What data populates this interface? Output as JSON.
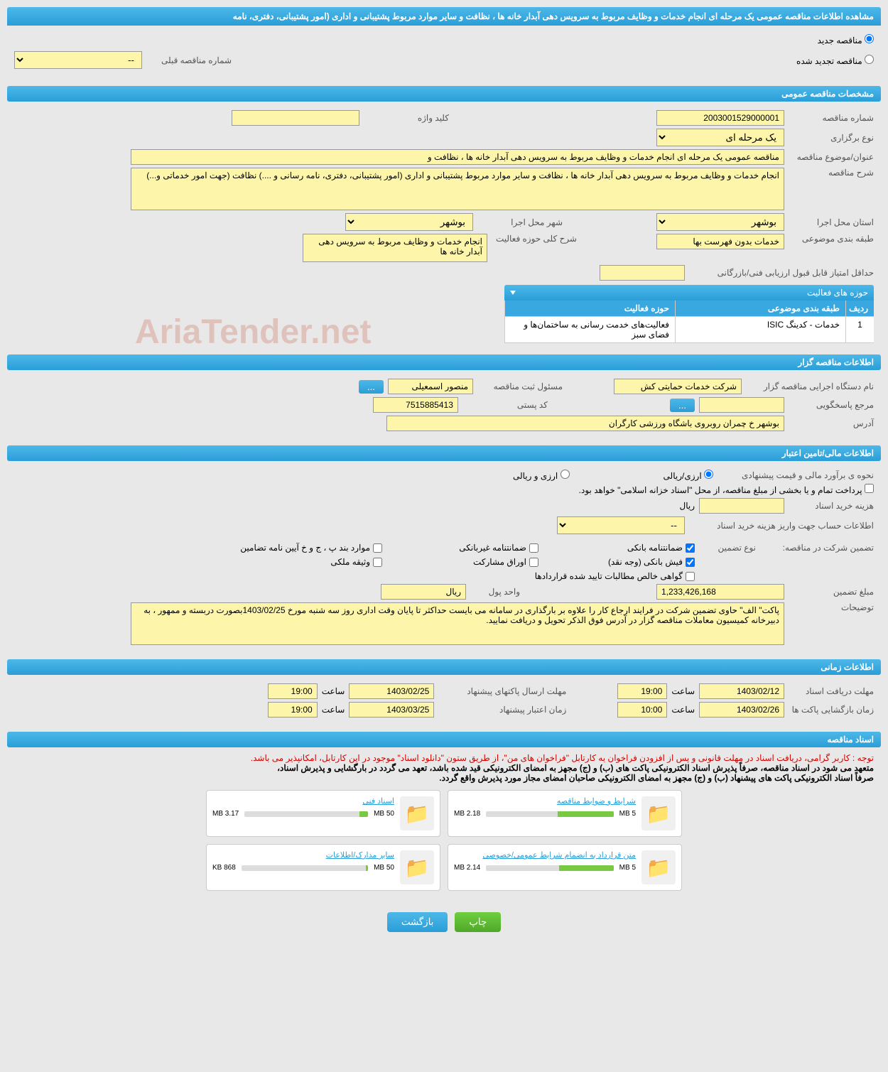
{
  "page_title": "مشاهده اطلاعات مناقصه عمومی یک مرحله ای انجام خدمات و وظایف مربوط به سرویس دهی آبدار خانه ها ، نظافت و سایر موارد مربوط پشتیبانی و اداری (امور پشتیبانی، دفتری، نامه",
  "radio_new": "مناقصه جدید",
  "radio_renewed": "مناقصه تجدید شده",
  "prev_tender_label": "شماره مناقصه قبلی",
  "prev_tender_value": "--",
  "sections": {
    "general": "مشخصات مناقصه عمومی",
    "holder": "اطلاعات مناقصه گزار",
    "finance": "اطلاعات مالی/تامین اعتبار",
    "time": "اطلاعات زمانی",
    "docs": "اسناد مناقصه"
  },
  "general": {
    "tender_no_label": "شماره مناقصه",
    "tender_no": "2003001529000001",
    "keyword_label": "کلید واژه",
    "keyword": "",
    "holding_type_label": "نوع برگزاری",
    "holding_type": "یک مرحله ای",
    "subject_label": "عنوان/موضوع مناقصه",
    "subject": "مناقصه عمومی یک مرحله ای انجام خدمات و وظایف مربوط به سرویس دهی آبدار خانه ها ، نظافت و",
    "desc_label": "شرح مناقصه",
    "desc": "انجام خدمات و وظایف مربوط به سرویس دهی آبدار خانه ها ، نظافت و سایر موارد مربوط  پشتیبانی و اداری (امور پشتیبانی، دفتری، نامه رسانی و ....) نظافت (جهت امور خدماتی و...)",
    "province_label": "استان محل اجرا",
    "province": "بوشهر",
    "city_label": "شهر محل اجرا",
    "city": "بوشهر",
    "category_label": "طبقه بندی موضوعی",
    "category": "خدمات بدون فهرست بها",
    "activity_desc_label": "شرح کلی حوزه فعالیت",
    "activity_desc": "انجام خدمات و وظایف مربوط به سرویس دهی آبدار خانه ها",
    "min_score_label": "حداقل امتیاز قابل قبول ارزیابی فنی/بازرگانی",
    "min_score": ""
  },
  "activity_table": {
    "title": "حوزه های فعالیت",
    "h_row": "ردیف",
    "h_cat": "طبقه بندی موضوعی",
    "h_field": "حوزه فعالیت",
    "rows": [
      {
        "n": "1",
        "cat": "خدمات - کدینگ ISIC",
        "field": "فعالیت‌های خدمت رسانی به ساختمان‌ها و فضای سبز"
      }
    ]
  },
  "holder": {
    "org_label": "نام دستگاه اجرایی مناقصه گزار",
    "org": "شرکت خدمات حمایتی کش",
    "responsible_label": "مسئول ثبت مناقصه",
    "responsible": "منصور اسمعیلی",
    "btn_more": "...",
    "contact_label": "مرجع پاسخگویی",
    "contact": "",
    "postal_label": "کد پستی",
    "postal": "7515885413",
    "address_label": "آدرس",
    "address": "بوشهر خ چمران روبروی باشگاه ورزشی کارگران"
  },
  "finance": {
    "estimate_label": "نحوه ی برآورد مالی و قیمت پیشنهادی",
    "rial_label": "ارزی/ریالی",
    "currency_label": "ارزی و ریالی",
    "treasury_note": "پرداخت تمام و یا بخشی از مبلغ مناقصه، از محل \"اسناد خزانه اسلامی\" خواهد بود.",
    "doc_cost_label": "هزینه خرید اسناد",
    "doc_cost": "",
    "doc_cost_unit": "ریال",
    "account_label": "اطلاعات حساب جهت واریز هزینه خرید اسناد",
    "account": "--",
    "guarantee_section_label": "تضمین شرکت در مناقصه:",
    "guarantee_type_label": "نوع تضمین",
    "chk_bank_guarantee": "ضمانتنامه بانکی",
    "chk_nonbank_guarantee": "ضمانتنامه غیربانکی",
    "chk_regulations": "موارد بند پ ، ج و خ آیین نامه تضامین",
    "chk_bank_receipt": "فیش بانکی (وجه نقد)",
    "chk_participation": "اوراق مشارکت",
    "chk_property": "وثیقه ملکی",
    "chk_clearance": "گواهی خالص مطالبات تایید شده قراردادها",
    "amount_label": "مبلغ تضمین",
    "amount": "1,233,426,168",
    "unit_label": "واحد پول",
    "unit": "ریال",
    "notes_label": "توضیحات",
    "notes": "پاکت\" الف\" حاوی تضمین شرکت در فرایند ارجاع کار را علاوه بر بارگذاری در سامانه می بایست حداکثر تا پایان وقت اداری روز سه شنبه مورخ 1403/02/25بصورت دربسته و ممهور ، به دبیرخانه کمیسیون معاملات مناقصه گزار در آدرس فوق الذکر تحویل و دریافت  نمایید."
  },
  "time": {
    "receive_label": "مهلت دریافت اسناد",
    "receive_date": "1403/02/12",
    "hour_label": "ساعت",
    "receive_hour": "19:00",
    "submit_label": "مهلت ارسال پاکتهای پیشنهاد",
    "submit_date": "1403/02/25",
    "submit_hour": "19:00",
    "open_label": "زمان بازگشایی پاکت ها",
    "open_date": "1403/02/26",
    "open_hour": "10:00",
    "validity_label": "زمان اعتبار پیشنهاد",
    "validity_date": "1403/03/25",
    "validity_hour": "19:00"
  },
  "docs": {
    "warning": "توجه : کاربر گرامی، دریافت اسناد در مهلت قانونی و پس از افزودن فراخوان به کارتابل \"فراخوان های من\"، از طریق ستون \"دانلود اسناد\" موجود در این کارتابل، امکانپذیر می باشد.",
    "note1": "متعهد می شود در اسناد مناقصه، صرفاً پذیرش اسناد الکترونیکی پاکت های (ب) و (ج) مجهز به امضای الکترونیکی قید شده باشد، تعهد می گردد در بارگشایی و پذیرش اسناد،",
    "note2": "صرفاً اسناد الکترونیکی پاکت های پیشنهاد (ب) و (ج) مجهز به امضای الکترونیکی صاحبان امضای مجاز مورد پذیرش واقع گردد.",
    "items": [
      {
        "title": "شرایط و ضوابط مناقصه",
        "used": "2.18 MB",
        "cap": "5 MB",
        "pct": 44
      },
      {
        "title": "اسناد فنی",
        "used": "3.17 MB",
        "cap": "50 MB",
        "pct": 7
      },
      {
        "title": "متن قرارداد به انضمام شرایط عمومی/خصوصی",
        "used": "2.14 MB",
        "cap": "5 MB",
        "pct": 43
      },
      {
        "title": "سایر مدارک/اطلاعات",
        "used": "868 KB",
        "cap": "50 MB",
        "pct": 2
      }
    ]
  },
  "footer": {
    "print": "چاپ",
    "back": "بازگشت"
  },
  "watermark": "AriaTender.net"
}
